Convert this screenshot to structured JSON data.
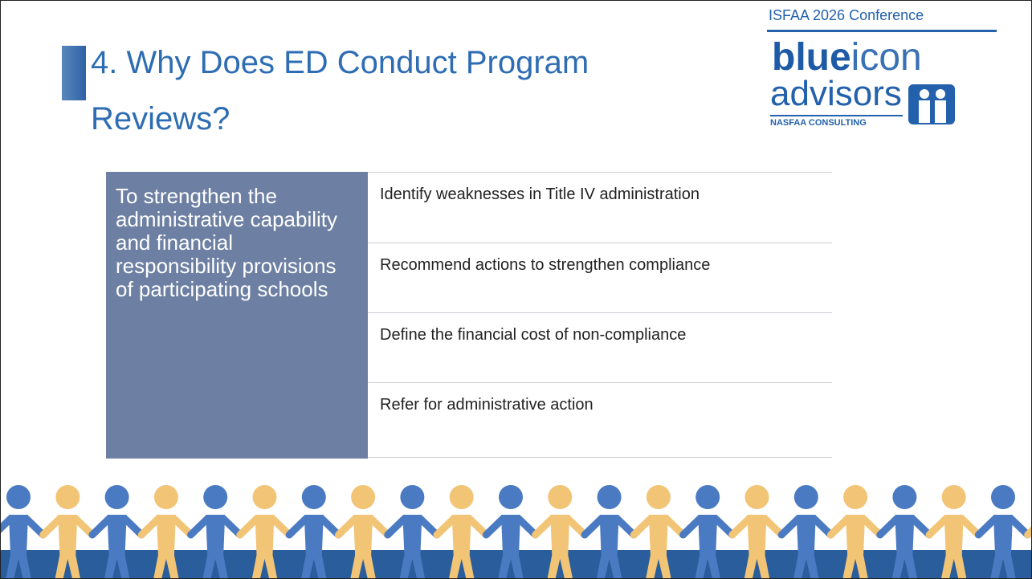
{
  "header": {
    "title": "4. Why Does ED Conduct Program Reviews?",
    "conference": "ISFAA 2026 Conference"
  },
  "logo": {
    "brand_bold": "blue",
    "brand_light": "icon",
    "line2": "advisors",
    "tagline": "NASFAA CONSULTING"
  },
  "table": {
    "left": "To strengthen the administrative capability and financial responsibility provisions of participating schools",
    "rows": [
      "Identify weaknesses in Title IV administration",
      "Recommend actions to strengthen compliance",
      "Define the financial cost of non-compliance",
      "Refer for administrative action"
    ]
  }
}
